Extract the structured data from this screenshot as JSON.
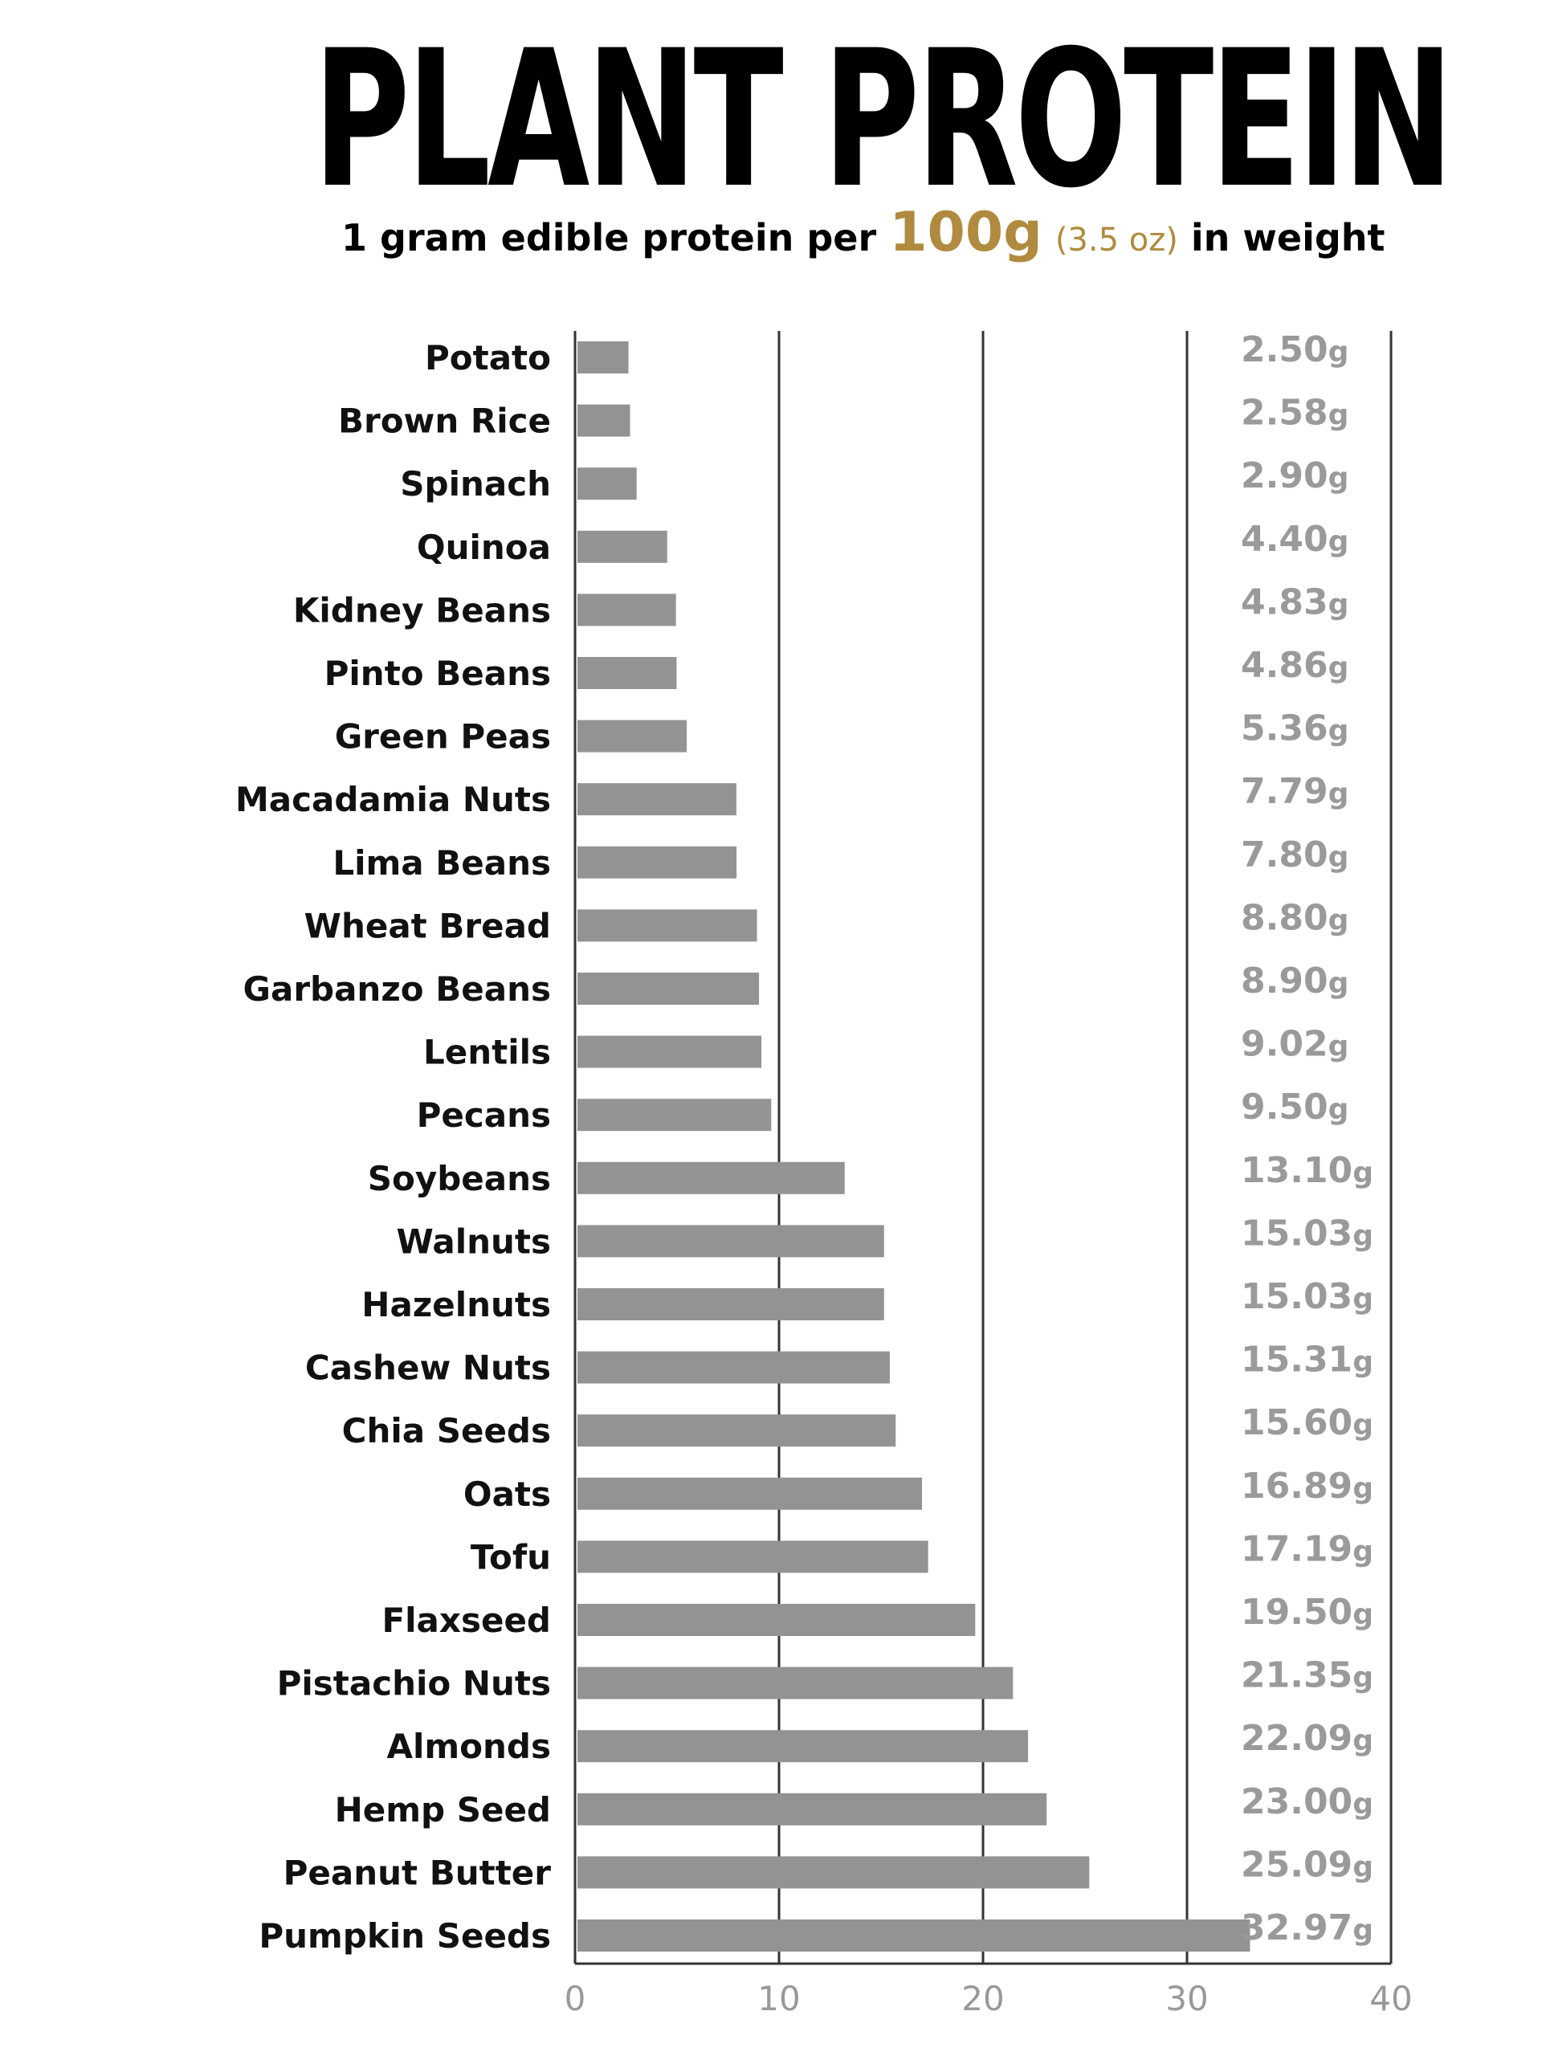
{
  "header": {
    "title": "PLANT PROTEIN",
    "subtitle_pre": "1 gram edible protein per",
    "subtitle_amount": "100g",
    "subtitle_oz": "(3.5 oz)",
    "subtitle_post": "in weight"
  },
  "colors": {
    "bar": "#939393",
    "accent": "#b08a3e",
    "value_text": "#9a9a9a",
    "gridline": "#333333"
  },
  "chart_data": {
    "type": "bar",
    "orientation": "horizontal",
    "categories": [
      "Potato",
      "Brown Rice",
      "Spinach",
      "Quinoa",
      "Kidney Beans",
      "Pinto Beans",
      "Green Peas",
      "Macadamia Nuts",
      "Lima Beans",
      "Wheat Bread",
      "Garbanzo Beans",
      "Lentils",
      "Pecans",
      "Soybeans",
      "Walnuts",
      "Hazelnuts",
      "Cashew Nuts",
      "Chia Seeds",
      "Oats",
      "Tofu",
      "Flaxseed",
      "Pistachio Nuts",
      "Almonds",
      "Hemp Seed",
      "Peanut Butter",
      "Pumpkin Seeds"
    ],
    "values": [
      2.5,
      2.58,
      2.9,
      4.4,
      4.83,
      4.86,
      5.36,
      7.79,
      7.8,
      8.8,
      8.9,
      9.02,
      9.5,
      13.1,
      15.03,
      15.03,
      15.31,
      15.6,
      16.89,
      17.19,
      19.5,
      21.35,
      22.09,
      23.0,
      25.09,
      32.97
    ],
    "value_labels": [
      "2.50",
      "2.58",
      "2.90",
      "4.40",
      "4.83",
      "4.86",
      "5.36",
      "7.79",
      "7.80",
      "8.80",
      "8.90",
      "9.02",
      "9.50",
      "13.10",
      "15.03",
      "15.03",
      "15.31",
      "15.60",
      "16.89",
      "17.19",
      "19.50",
      "21.35",
      "22.09",
      "23.00",
      "25.09",
      "32.97"
    ],
    "value_unit": "g",
    "xticks": [
      "0",
      "10",
      "20",
      "30",
      "40"
    ],
    "xlim": [
      0,
      40
    ],
    "grid": true
  }
}
